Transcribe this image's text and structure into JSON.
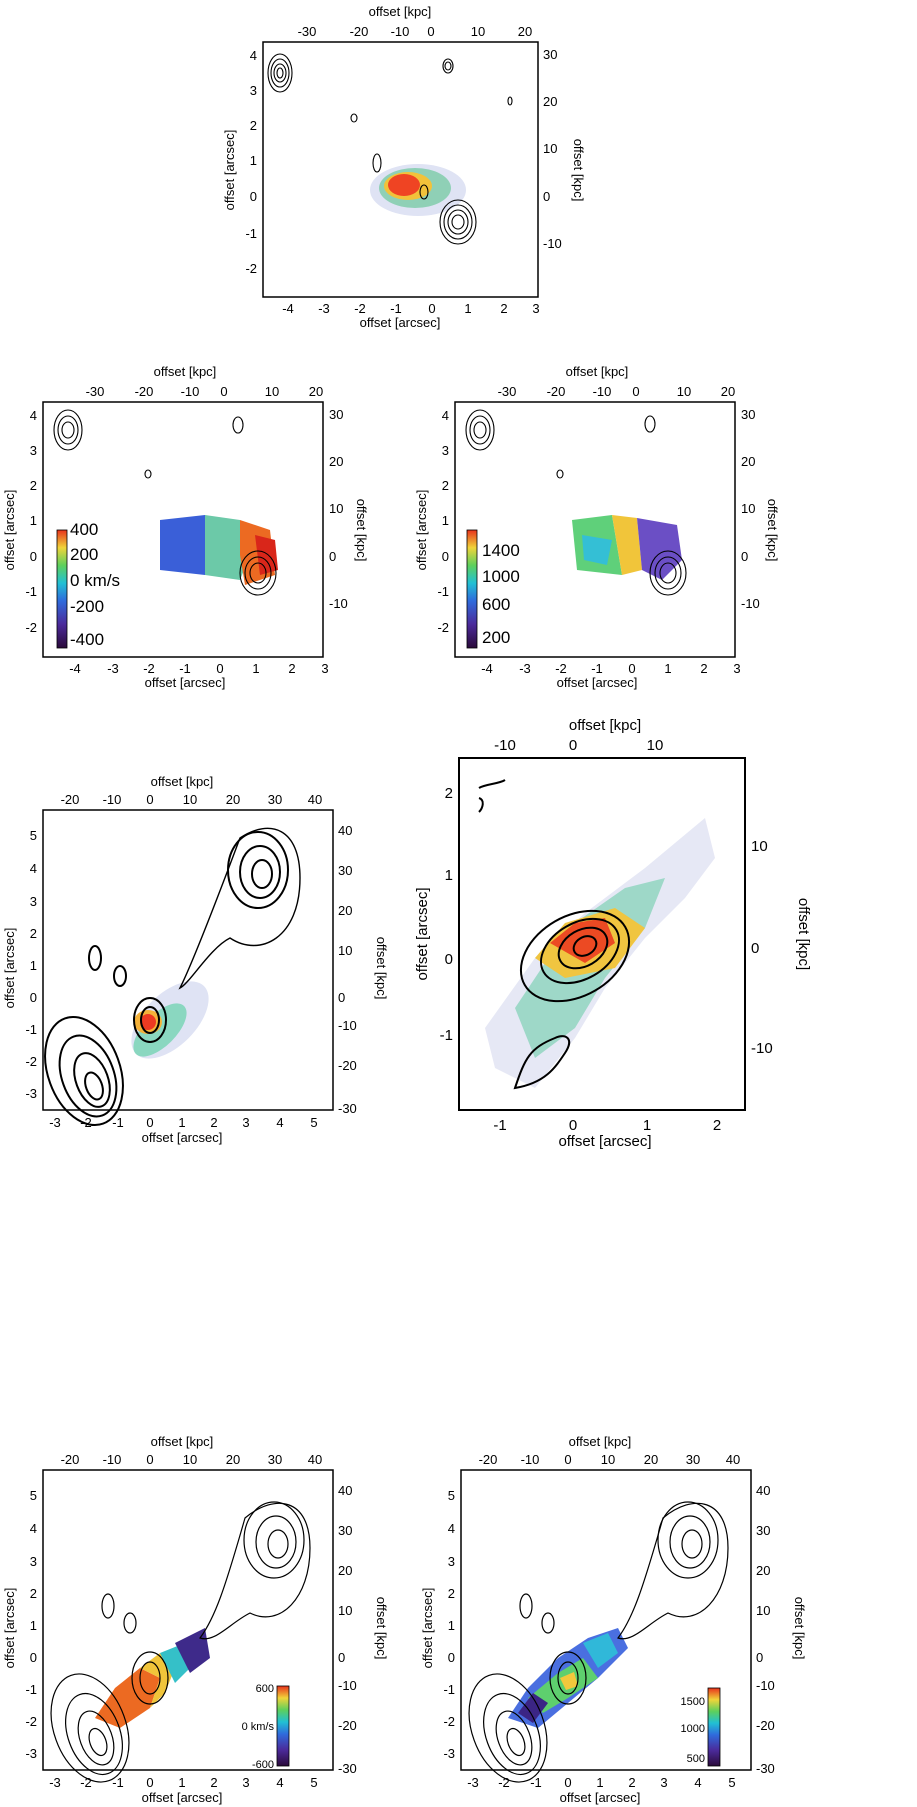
{
  "figure": {
    "panels": [
      {
        "id": "p1",
        "xlabel_bottom": "offset [arcsec]",
        "xlabel_top": "offset [kpc]",
        "ylabel_left": "offset [arcsec]",
        "ylabel_right": "offset [kpc]",
        "xticks_bottom": [
          "-4",
          "-3",
          "-2",
          "-1",
          "0",
          "1",
          "2",
          "3"
        ],
        "xticks_top": [
          "-30",
          "-20",
          "-10",
          "0",
          "10",
          "20"
        ],
        "yticks_left": [
          "-2",
          "-1",
          "0",
          "1",
          "2",
          "3",
          "4"
        ],
        "yticks_right": [
          "-10",
          "0",
          "10",
          "20",
          "30"
        ]
      },
      {
        "id": "p2",
        "xlabel_bottom": "offset [arcsec]",
        "xlabel_top": "offset [kpc]",
        "ylabel_left": "offset [arcsec]",
        "ylabel_right": "offset [kpc]",
        "xticks_bottom": [
          "-4",
          "-3",
          "-2",
          "-1",
          "0",
          "1",
          "2",
          "3"
        ],
        "xticks_top": [
          "-30",
          "-20",
          "-10",
          "0",
          "10",
          "20"
        ],
        "yticks_left": [
          "-2",
          "-1",
          "0",
          "1",
          "2",
          "3",
          "4"
        ],
        "yticks_right": [
          "-10",
          "0",
          "10",
          "20",
          "30"
        ],
        "colorbar": {
          "labels": [
            "400",
            "200",
            "0 km/s",
            "-200",
            "-400"
          ]
        }
      },
      {
        "id": "p3",
        "xlabel_bottom": "offset [arcsec]",
        "xlabel_top": "offset [kpc]",
        "ylabel_left": "offset [arcsec]",
        "ylabel_right": "offset [kpc]",
        "xticks_bottom": [
          "-4",
          "-3",
          "-2",
          "-1",
          "0",
          "1",
          "2",
          "3"
        ],
        "xticks_top": [
          "-30",
          "-20",
          "-10",
          "0",
          "10",
          "20"
        ],
        "yticks_left": [
          "-2",
          "-1",
          "0",
          "1",
          "2",
          "3",
          "4"
        ],
        "yticks_right": [
          "-10",
          "0",
          "10",
          "20",
          "30"
        ],
        "colorbar": {
          "labels": [
            "1400",
            "1000",
            "600",
            "200"
          ]
        }
      },
      {
        "id": "p4",
        "xlabel_bottom": "offset [arcsec]",
        "xlabel_top": "offset [kpc]",
        "ylabel_left": "offset [arcsec]",
        "ylabel_right": "offset [kpc]",
        "xticks_bottom": [
          "-3",
          "-2",
          "-1",
          "0",
          "1",
          "2",
          "3",
          "4",
          "5"
        ],
        "xticks_top": [
          "-20",
          "-10",
          "0",
          "10",
          "20",
          "30",
          "40"
        ],
        "yticks_left": [
          "-3",
          "-2",
          "-1",
          "0",
          "1",
          "2",
          "3",
          "4",
          "5"
        ],
        "yticks_right": [
          "-30",
          "-20",
          "-10",
          "0",
          "10",
          "20",
          "30",
          "40"
        ]
      },
      {
        "id": "p5",
        "xlabel_bottom": "offset [arcsec]",
        "xlabel_top": "offset [kpc]",
        "ylabel_left": "offset [arcsec]",
        "ylabel_right": "offset [kpc]",
        "xticks_bottom": [
          "-1",
          "0",
          "1",
          "2"
        ],
        "xticks_top": [
          "-10",
          "0",
          "10"
        ],
        "yticks_left": [
          "-1",
          "0",
          "1",
          "2"
        ],
        "yticks_right": [
          "-10",
          "0",
          "10"
        ]
      },
      {
        "id": "p6",
        "xlabel_bottom": "offset [arcsec]",
        "xlabel_top": "offset [kpc]",
        "ylabel_left": "offset [arcsec]",
        "ylabel_right": "offset [kpc]",
        "xticks_bottom": [
          "-3",
          "-2",
          "-1",
          "0",
          "1",
          "2",
          "3",
          "4",
          "5"
        ],
        "xticks_top": [
          "-20",
          "-10",
          "0",
          "10",
          "20",
          "30",
          "40"
        ],
        "yticks_left": [
          "-3",
          "-2",
          "-1",
          "0",
          "1",
          "2",
          "3",
          "4",
          "5"
        ],
        "yticks_right": [
          "-30",
          "-20",
          "-10",
          "0",
          "10",
          "20",
          "30",
          "40"
        ],
        "colorbar": {
          "labels": [
            "600",
            "0 km/s",
            "-600"
          ]
        }
      },
      {
        "id": "p7",
        "xlabel_bottom": "offset [arcsec]",
        "xlabel_top": "offset [kpc]",
        "ylabel_left": "offset [arcsec]",
        "ylabel_right": "offset [kpc]",
        "xticks_bottom": [
          "-3",
          "-2",
          "-1",
          "0",
          "1",
          "2",
          "3",
          "4",
          "5"
        ],
        "xticks_top": [
          "-20",
          "-10",
          "0",
          "10",
          "20",
          "30",
          "40"
        ],
        "yticks_left": [
          "-3",
          "-2",
          "-1",
          "0",
          "1",
          "2",
          "3",
          "4",
          "5"
        ],
        "yticks_right": [
          "-30",
          "-20",
          "-10",
          "0",
          "10",
          "20",
          "30",
          "40"
        ],
        "colorbar": {
          "labels": [
            "1500",
            "1000",
            "500"
          ]
        }
      }
    ]
  }
}
